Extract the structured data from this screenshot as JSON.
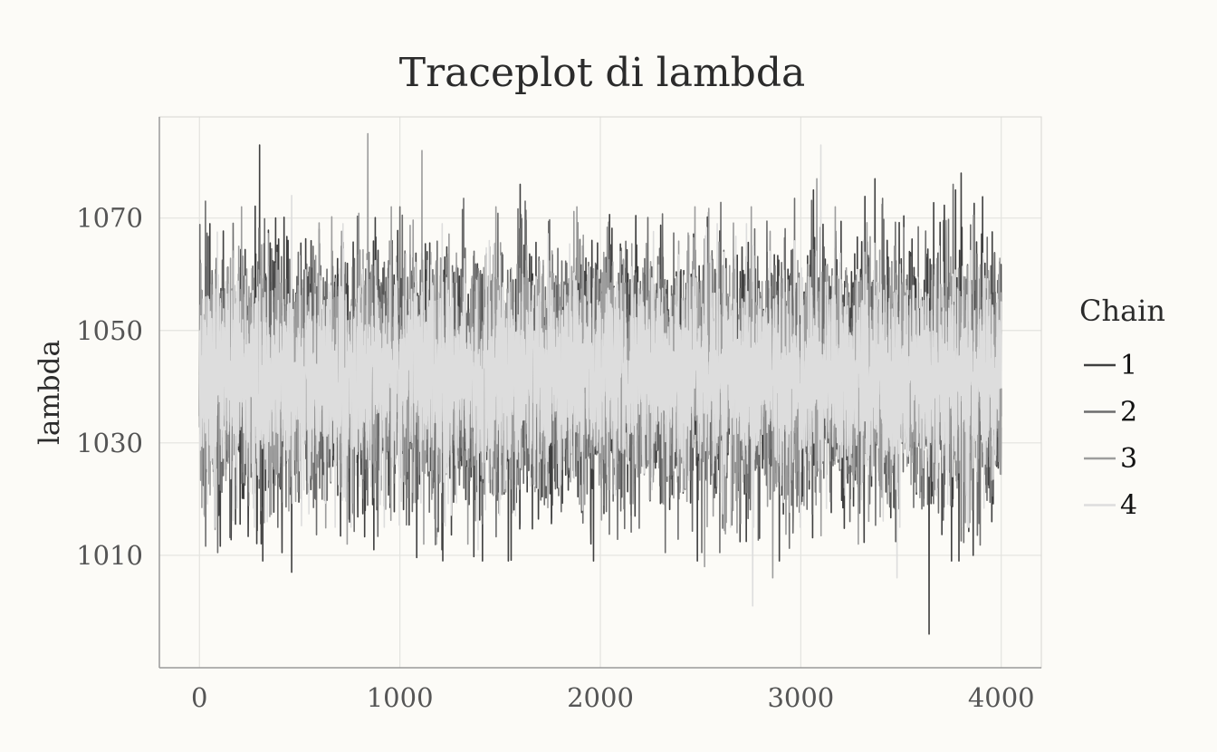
{
  "chart_data": {
    "type": "line",
    "title": "Traceplot di lambda",
    "xlabel": "",
    "ylabel": "lambda",
    "xlim": [
      -200,
      4200
    ],
    "ylim": [
      990,
      1088
    ],
    "x_ticks": [
      0,
      1000,
      2000,
      3000,
      4000
    ],
    "x_tick_labels": [
      "0",
      "1000",
      "2000",
      "3000",
      "4000"
    ],
    "y_ticks": [
      1010,
      1030,
      1050,
      1070
    ],
    "y_tick_labels": [
      "1010",
      "1030",
      "1050",
      "1070"
    ],
    "grid": true,
    "legend": {
      "title": "Chain",
      "position": "right",
      "entries": [
        "1",
        "2",
        "3",
        "4"
      ]
    },
    "series_colors": [
      "#3f3f3f",
      "#6d6d6d",
      "#9d9d9d",
      "#dddddd"
    ],
    "draw_order": [
      "1",
      "2",
      "3",
      "4"
    ],
    "n_draws": 4000,
    "x_range": [
      1,
      4000
    ],
    "series": [
      {
        "name": "1",
        "mean": 1042,
        "sd": 11,
        "extremes": [
          {
            "x": 300,
            "y": 1083
          },
          {
            "x": 460,
            "y": 1007
          },
          {
            "x": 870,
            "y": 1011
          },
          {
            "x": 1210,
            "y": 1011
          },
          {
            "x": 1600,
            "y": 1076
          },
          {
            "x": 3370,
            "y": 1077
          },
          {
            "x": 3640,
            "y": 996
          },
          {
            "x": 3800,
            "y": 1078
          },
          {
            "x": 3860,
            "y": 1010
          }
        ]
      },
      {
        "name": "2",
        "mean": 1042,
        "sd": 10.5,
        "extremes": [
          {
            "x": 30,
            "y": 1073
          },
          {
            "x": 1000,
            "y": 1072
          },
          {
            "x": 2540,
            "y": 1071
          },
          {
            "x": 3760,
            "y": 1076
          }
        ]
      },
      {
        "name": "3",
        "mean": 1042,
        "sd": 10,
        "extremes": [
          {
            "x": 840,
            "y": 1085
          },
          {
            "x": 1110,
            "y": 1082
          },
          {
            "x": 2520,
            "y": 1008
          },
          {
            "x": 2860,
            "y": 1006
          },
          {
            "x": 3080,
            "y": 1077
          }
        ]
      },
      {
        "name": "4",
        "mean": 1042,
        "sd": 9,
        "extremes": [
          {
            "x": 460,
            "y": 1074
          },
          {
            "x": 1390,
            "y": 1011
          },
          {
            "x": 2760,
            "y": 1001
          },
          {
            "x": 3100,
            "y": 1083
          },
          {
            "x": 3480,
            "y": 1006
          }
        ]
      }
    ]
  }
}
